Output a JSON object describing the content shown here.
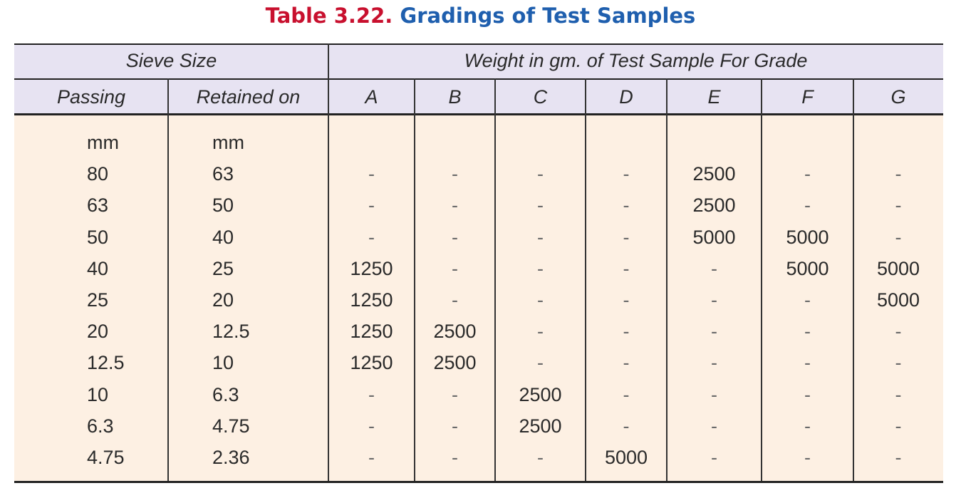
{
  "title": {
    "number": "Table 3.22.",
    "text": "Gradings of Test Samples"
  },
  "header": {
    "group_sieve": "Sieve Size",
    "group_weight": "Weight in gm. of Test Sample For Grade",
    "passing": "Passing",
    "retained": "Retained on",
    "grades": [
      "A",
      "B",
      "C",
      "D",
      "E",
      "F",
      "G"
    ]
  },
  "rows": [
    {
      "passing": "mm",
      "retained": "mm",
      "values": [
        "",
        "",
        "",
        "",
        "",
        "",
        ""
      ]
    },
    {
      "passing": "80",
      "retained": "63",
      "values": [
        "-",
        "-",
        "-",
        "-",
        "2500",
        "-",
        "-"
      ]
    },
    {
      "passing": "63",
      "retained": "50",
      "values": [
        "-",
        "-",
        "-",
        "-",
        "2500",
        "-",
        "-"
      ]
    },
    {
      "passing": "50",
      "retained": "40",
      "values": [
        "-",
        "-",
        "-",
        "-",
        "5000",
        "5000",
        "-"
      ]
    },
    {
      "passing": "40",
      "retained": "25",
      "values": [
        "1250",
        "-",
        "-",
        "-",
        "-",
        "5000",
        "5000"
      ]
    },
    {
      "passing": "25",
      "retained": "20",
      "values": [
        "1250",
        "-",
        "-",
        "-",
        "-",
        "-",
        "5000"
      ]
    },
    {
      "passing": "20",
      "retained": "12.5",
      "values": [
        "1250",
        "2500",
        "-",
        "-",
        "-",
        "-",
        "-"
      ]
    },
    {
      "passing": "12.5",
      "retained": "10",
      "values": [
        "1250",
        "2500",
        "-",
        "-",
        "-",
        "-",
        "-"
      ]
    },
    {
      "passing": "10",
      "retained": "6.3",
      "values": [
        "-",
        "-",
        "2500",
        "-",
        "-",
        "-",
        "-"
      ]
    },
    {
      "passing": "6.3",
      "retained": "4.75",
      "values": [
        "-",
        "-",
        "2500",
        "-",
        "-",
        "-",
        "-"
      ]
    },
    {
      "passing": "4.75",
      "retained": "2.36",
      "values": [
        "-",
        "-",
        "-",
        "5000",
        "-",
        "-",
        "-"
      ]
    }
  ],
  "colors": {
    "title_number": "#c8102e",
    "title_text": "#1f5fae",
    "header_bg": "#e7e3f2",
    "body_bg": "#fdf0e3"
  }
}
